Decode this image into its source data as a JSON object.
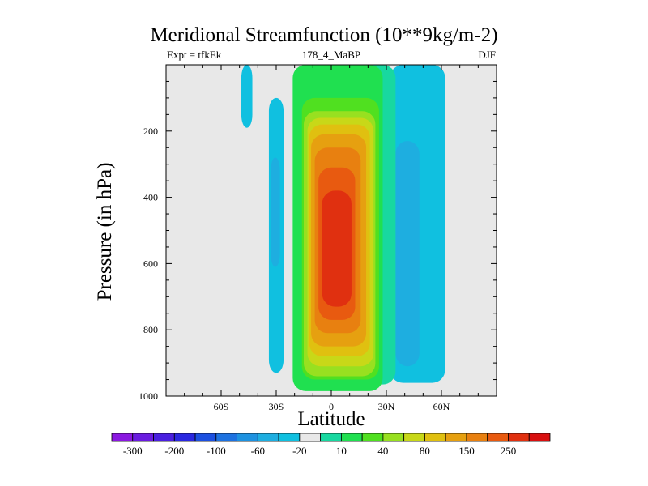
{
  "chart_data": {
    "type": "heatmap",
    "title": "Meridional Streamfunction (10**9kg/m-2)",
    "subtitle_left": "Expt = tfkEk",
    "subtitle_center": "178_4_MaBP",
    "subtitle_right": "DJF",
    "xlabel": "Latitude",
    "ylabel": "Pressure (in hPa)",
    "xlim": [
      -90,
      90
    ],
    "ylim": [
      1000,
      0
    ],
    "x_ticks": [
      {
        "value": -60,
        "label": "60S"
      },
      {
        "value": -30,
        "label": "30S"
      },
      {
        "value": 0,
        "label": "0"
      },
      {
        "value": 30,
        "label": "30N"
      },
      {
        "value": 60,
        "label": "60N"
      }
    ],
    "y_ticks": [
      {
        "value": 200,
        "label": "200"
      },
      {
        "value": 400,
        "label": "400"
      },
      {
        "value": 600,
        "label": "600"
      },
      {
        "value": 800,
        "label": "800"
      },
      {
        "value": 1000,
        "label": "1000"
      }
    ],
    "background_color": "#e8e8e8",
    "colorbar": {
      "colors": [
        "#8a18e0",
        "#6a1ce0",
        "#4a20e0",
        "#2a28e0",
        "#1c50e0",
        "#1e72e0",
        "#1e92e0",
        "#1eaee0",
        "#10c0e0",
        "#e8e8e8",
        "#18d8a0",
        "#20e050",
        "#50e020",
        "#98e020",
        "#c8d818",
        "#e0c010",
        "#e6a010",
        "#e88010",
        "#e85a10",
        "#e03010",
        "#d81010"
      ],
      "level_labels": [
        "-300",
        "-200",
        "-100",
        "-60",
        "-20",
        "10",
        "40",
        "80",
        "150",
        "250"
      ]
    },
    "contours": [
      {
        "color": "#10c0e0",
        "lat_min": -49,
        "lat_max": -43,
        "p_top": 0,
        "p_bottom": 190
      },
      {
        "color": "#10c0e0",
        "lat_min": -34,
        "lat_max": -26,
        "p_top": 100,
        "p_bottom": 930
      },
      {
        "color": "#1eaee0",
        "lat_min": -33,
        "lat_max": -28,
        "p_top": 280,
        "p_bottom": 610
      },
      {
        "color": "#10c0e0",
        "lat_min": 32,
        "lat_max": 62,
        "p_top": 0,
        "p_bottom": 960
      },
      {
        "color": "#1eaee0",
        "lat_min": 35,
        "lat_max": 48,
        "p_top": 230,
        "p_bottom": 910
      },
      {
        "color": "#18d8a0",
        "lat_min": -19,
        "lat_max": 35,
        "p_top": 0,
        "p_bottom": 965
      },
      {
        "color": "#20e050",
        "lat_min": -21,
        "lat_max": 28,
        "p_top": 0,
        "p_bottom": 985
      },
      {
        "color": "#50e020",
        "lat_min": -16,
        "lat_max": 26,
        "p_top": 100,
        "p_bottom": 950
      },
      {
        "color": "#98e020",
        "lat_min": -15,
        "lat_max": 24,
        "p_top": 140,
        "p_bottom": 940
      },
      {
        "color": "#c8d818",
        "lat_min": -13,
        "lat_max": 23,
        "p_top": 160,
        "p_bottom": 910
      },
      {
        "color": "#e0c010",
        "lat_min": -12,
        "lat_max": 21,
        "p_top": 180,
        "p_bottom": 880
      },
      {
        "color": "#e6a010",
        "lat_min": -11,
        "lat_max": 19,
        "p_top": 210,
        "p_bottom": 850
      },
      {
        "color": "#e88010",
        "lat_min": -9,
        "lat_max": 16,
        "p_top": 250,
        "p_bottom": 810
      },
      {
        "color": "#e85a10",
        "lat_min": -7,
        "lat_max": 13,
        "p_top": 310,
        "p_bottom": 770
      },
      {
        "color": "#e03010",
        "lat_min": -5,
        "lat_max": 11,
        "p_top": 380,
        "p_bottom": 730
      }
    ]
  }
}
